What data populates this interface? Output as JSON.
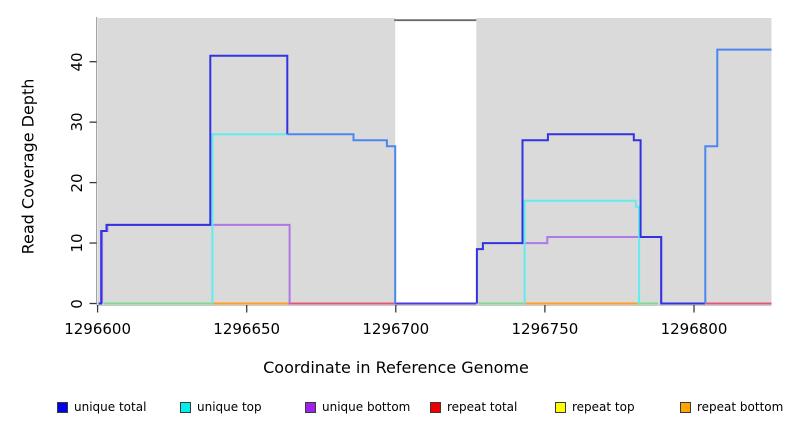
{
  "chart_data": {
    "type": "line",
    "subtype": "step-coverage-plot",
    "title": "",
    "xlabel": "Coordinate in Reference Genome",
    "ylabel": "Read Coverage Depth",
    "xlim": [
      1296600,
      1296826
    ],
    "ylim": [
      0,
      47.3
    ],
    "grid": false,
    "x_ticks": [
      1296600,
      1296650,
      1296700,
      1296750,
      1296800
    ],
    "y_ticks": [
      0,
      10,
      20,
      30,
      40
    ],
    "plot_background_color": "#dadada",
    "background_regions": [
      [
        1296600,
        1296699.8
      ],
      [
        1296727,
        1296826
      ]
    ],
    "uncovered_gap_region": [
      1296699.8,
      1296727
    ],
    "legend": {
      "position": "bottom",
      "items": [
        {
          "label": "unique total",
          "color": "#0000ee"
        },
        {
          "label": "unique top",
          "color": "#00eeee"
        },
        {
          "label": "unique bottom",
          "color": "#a020f0"
        },
        {
          "label": "repeat total",
          "color": "#ee0000"
        },
        {
          "label": "repeat top",
          "color": "#ffff00"
        },
        {
          "label": "repeat bottom",
          "color": "#ffa500"
        }
      ]
    },
    "series": [
      {
        "name": "unique total",
        "segments_start_end_depth": [
          [
            1296601,
            1296603,
            12
          ],
          [
            1296603,
            1296638,
            13
          ],
          [
            1296638,
            1296664,
            41
          ],
          [
            1296664,
            1296686,
            28
          ],
          [
            1296686,
            1296697,
            27
          ],
          [
            1296697,
            1296700,
            26
          ],
          [
            1296700,
            1296727,
            0
          ],
          [
            1296727,
            1296729,
            9
          ],
          [
            1296729,
            1296743,
            10
          ],
          [
            1296743,
            1296751,
            27
          ],
          [
            1296751,
            1296780,
            28
          ],
          [
            1296780,
            1296782,
            27
          ],
          [
            1296782,
            1296789,
            11
          ],
          [
            1296789,
            1296804,
            0
          ],
          [
            1296804,
            1296808,
            26
          ],
          [
            1296808,
            1296826,
            42
          ]
        ]
      },
      {
        "name": "unique top",
        "segments_start_end_depth": [
          [
            1296638,
            1296664,
            28
          ],
          [
            1296743,
            1296780,
            17
          ],
          [
            1296780,
            1296782,
            16
          ]
        ]
      },
      {
        "name": "unique bottom",
        "segments_start_end_depth": [
          [
            1296601,
            1296603,
            12
          ],
          [
            1296603,
            1296664,
            13
          ],
          [
            1296727,
            1296751,
            10
          ],
          [
            1296751,
            1296789,
            11
          ]
        ]
      },
      {
        "name": "repeat total",
        "segments_start_end_depth": [
          [
            1296600,
            1296826,
            0
          ]
        ]
      },
      {
        "name": "repeat top",
        "segments_start_end_depth": [
          [
            1296600,
            1296826,
            0
          ]
        ]
      },
      {
        "name": "repeat bottom",
        "segments_start_end_depth": [
          [
            1296600,
            1296826,
            0
          ]
        ]
      }
    ],
    "render_lines": [
      {
        "name": "zero-line-green-1",
        "color": "#7fdb93",
        "points": [
          [
            1296602,
            0
          ],
          [
            1296638.5,
            0
          ]
        ]
      },
      {
        "name": "zero-line-orange-1",
        "color": "#ff9e21",
        "points": [
          [
            1296638.5,
            0
          ],
          [
            1296664,
            0
          ]
        ]
      },
      {
        "name": "zero-line-crimson-1",
        "color": "#e05878",
        "points": [
          [
            1296664,
            0
          ],
          [
            1296699.8,
            0
          ]
        ]
      },
      {
        "name": "zero-line-green-2",
        "color": "#7fdb93",
        "points": [
          [
            1296727.5,
            0
          ],
          [
            1296743.2,
            0
          ]
        ]
      },
      {
        "name": "zero-line-orange-2",
        "color": "#ff9e21",
        "points": [
          [
            1296743.2,
            0
          ],
          [
            1296780.9,
            0
          ]
        ]
      },
      {
        "name": "zero-line-green-3",
        "color": "#7fdb93",
        "points": [
          [
            1296780.9,
            0
          ],
          [
            1296788,
            0
          ]
        ]
      },
      {
        "name": "zero-line-crimson-2",
        "color": "#e05878",
        "points": [
          [
            1296804,
            0
          ],
          [
            1296826,
            0
          ]
        ]
      },
      {
        "name": "gap-zero-line",
        "color": "#4b3be0",
        "points": [
          [
            1296699.8,
            0
          ],
          [
            1296727,
            0
          ]
        ]
      },
      {
        "name": "unique-bottom-left",
        "color": "#b077e8",
        "points": [
          [
            1296601.5,
            0
          ],
          [
            1296601.5,
            12
          ],
          [
            1296603.3,
            12
          ],
          [
            1296603.3,
            13
          ],
          [
            1296664.4,
            13
          ],
          [
            1296664.4,
            0
          ]
        ]
      },
      {
        "name": "unique-bottom-right",
        "color": "#b077e8",
        "points": [
          [
            1296742.5,
            10
          ],
          [
            1296750.8,
            10
          ],
          [
            1296750.8,
            11
          ],
          [
            1296789,
            11
          ],
          [
            1296789,
            0
          ]
        ]
      },
      {
        "name": "unique-top-left",
        "color": "#5fedee",
        "points": [
          [
            1296638.5,
            0
          ],
          [
            1296638.5,
            28
          ],
          [
            1296663.6,
            28
          ]
        ]
      },
      {
        "name": "unique-top-right",
        "color": "#5fedee",
        "points": [
          [
            1296743.2,
            0
          ],
          [
            1296743.2,
            17
          ],
          [
            1296780.5,
            17
          ],
          [
            1296780.5,
            16
          ],
          [
            1296781.6,
            16
          ],
          [
            1296781.6,
            0
          ]
        ]
      },
      {
        "name": "unique-total-left",
        "color": "#3232e2",
        "points": [
          [
            1296600.3,
            0
          ],
          [
            1296601.2,
            0
          ],
          [
            1296601.2,
            12
          ],
          [
            1296603,
            12
          ],
          [
            1296603,
            13
          ],
          [
            1296637.8,
            13
          ],
          [
            1296637.8,
            41
          ],
          [
            1296663.6,
            41
          ],
          [
            1296663.6,
            28
          ]
        ]
      },
      {
        "name": "unique-total-left-overlap",
        "color": "#4c86ef",
        "points": [
          [
            1296663.6,
            28
          ],
          [
            1296685.8,
            28
          ],
          [
            1296685.8,
            27
          ],
          [
            1296697,
            27
          ],
          [
            1296697,
            26
          ],
          [
            1296699.8,
            26
          ],
          [
            1296699.8,
            0
          ]
        ]
      },
      {
        "name": "unique-total-right",
        "color": "#3232e2",
        "points": [
          [
            1296727.2,
            0
          ],
          [
            1296727.2,
            9
          ],
          [
            1296729.2,
            9
          ],
          [
            1296729.2,
            10
          ],
          [
            1296742.5,
            10
          ],
          [
            1296742.5,
            27
          ],
          [
            1296751,
            27
          ],
          [
            1296751,
            28
          ],
          [
            1296779.8,
            28
          ],
          [
            1296779.8,
            27
          ],
          [
            1296782.1,
            27
          ],
          [
            1296782.1,
            11
          ],
          [
            1296789,
            11
          ],
          [
            1296789,
            0
          ],
          [
            1296803.8,
            0
          ]
        ]
      },
      {
        "name": "unique-total-right-overlap",
        "color": "#4c86ef",
        "points": [
          [
            1296803.8,
            0
          ],
          [
            1296803.8,
            26
          ],
          [
            1296807.8,
            26
          ],
          [
            1296807.8,
            42
          ],
          [
            1296826,
            42
          ]
        ]
      }
    ]
  }
}
